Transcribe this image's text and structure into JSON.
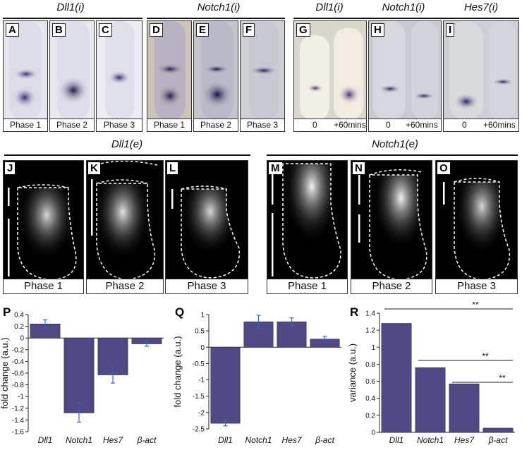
{
  "headers": {
    "dll1_i": "Dll1(i)",
    "notch1_i": "Notch1(i)",
    "dll1_i_b": "Dll1(i)",
    "notch1_i_b": "Notch1(i)",
    "hes7_i": "Hes7(i)",
    "dll1_e": "Dll1(e)",
    "notch1_e": "Notch1(e)"
  },
  "top_panels": [
    {
      "letter": "A",
      "caption": "Phase 1"
    },
    {
      "letter": "B",
      "caption": "Phase 2"
    },
    {
      "letter": "C",
      "caption": "Phase 3"
    },
    {
      "letter": "D",
      "caption": "Phase 1"
    },
    {
      "letter": "E",
      "caption": "Phase 2"
    },
    {
      "letter": "F",
      "caption": "Phase 3"
    }
  ],
  "time_panels": [
    {
      "letter": "G",
      "left": "0",
      "right": "+60mins"
    },
    {
      "letter": "H",
      "left": "0",
      "right": "+60mins"
    },
    {
      "letter": "I",
      "left": "0",
      "right": "+60mins"
    }
  ],
  "dark_panels": [
    {
      "letter": "J",
      "caption": "Phase 1"
    },
    {
      "letter": "K",
      "caption": "Phase 2"
    },
    {
      "letter": "L",
      "caption": "Phase 3"
    },
    {
      "letter": "M",
      "caption": "Phase 1"
    },
    {
      "letter": "N",
      "caption": "Phase 2"
    },
    {
      "letter": "O",
      "caption": "Phase 3"
    }
  ],
  "chart_data": [
    {
      "panel": "P",
      "type": "bar",
      "categories": [
        "Dll1",
        "Notch1",
        "Hes7",
        "β-act"
      ],
      "values": [
        0.24,
        -1.28,
        -0.63,
        -0.1
      ],
      "errors": [
        0.07,
        0.16,
        0.14,
        0.04
      ],
      "ylabel": "fold change (a.u.)",
      "ylim": [
        -1.6,
        0.4
      ],
      "yticks": [
        "0.4",
        "0.2",
        "0",
        "-0.2",
        "-0.4",
        "-0.6",
        "-0.8",
        "-1",
        "-1.2",
        "-1.4",
        "-1.6"
      ],
      "color": "#4f4b82"
    },
    {
      "panel": "Q",
      "type": "bar",
      "categories": [
        "Dll1",
        "Notch1",
        "Hes7",
        "β-act"
      ],
      "values": [
        -2.33,
        0.78,
        0.78,
        0.25
      ],
      "errors": [
        0.08,
        0.2,
        0.12,
        0.08
      ],
      "ylabel": "fold change (a.u.)",
      "ylim": [
        -2.5,
        1
      ],
      "yticks": [
        "1",
        "0.5",
        "0",
        "-0.5",
        "-1",
        "-1.5",
        "-2",
        "-2.5"
      ],
      "color": "#4f4b82"
    },
    {
      "panel": "R",
      "type": "bar",
      "categories": [
        "Dll1",
        "Notch1",
        "Hes7",
        "β-act"
      ],
      "values": [
        1.28,
        0.76,
        0.57,
        0.05
      ],
      "ylabel": "variance (a.u.)",
      "ylim": [
        0,
        1.4
      ],
      "yticks": [
        "1.4",
        "1.2",
        "1",
        "0.8",
        "0.6",
        "0.4",
        "0.2",
        "0"
      ],
      "significance": [
        "**",
        "**",
        "**"
      ],
      "color": "#4f4b82"
    }
  ]
}
